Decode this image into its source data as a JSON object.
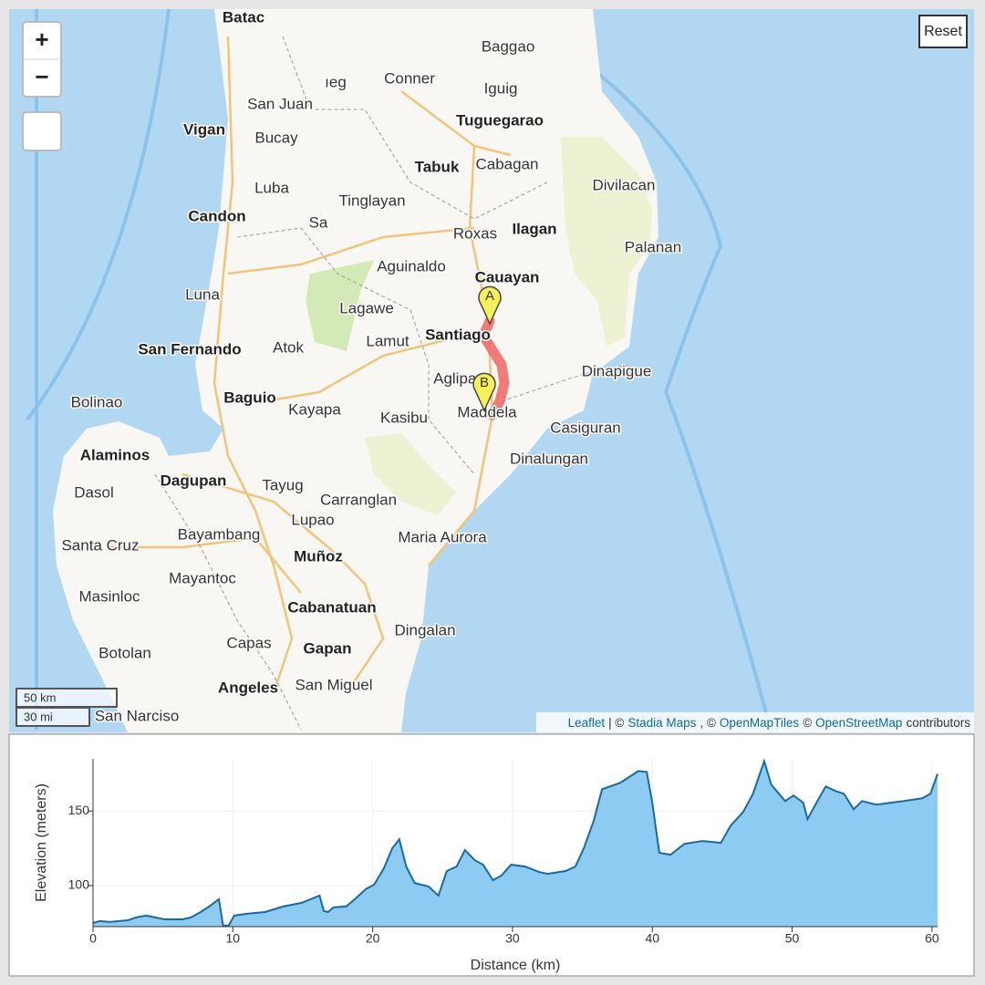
{
  "map": {
    "controls": {
      "zoom_in": "+",
      "zoom_out": "−",
      "reset": "Reset"
    },
    "places": [
      "Batac",
      "Baggao",
      "Conner",
      "Iguig",
      "ıeg",
      "San Juan",
      "Vigan",
      "Tuguegarao",
      "Bucay",
      "Tabuk",
      "Cabagan",
      "Divilacan",
      "Luba",
      "Candon",
      "Tinglayan",
      "Sa",
      "Roxas",
      "Ilagan",
      "Palanan",
      "Aguinaldo",
      "Cauayan",
      "Luna",
      "Lagawe",
      "Santiago",
      "Lamut",
      "Atok",
      "San Fernando",
      "Dinapigue",
      "Aglipay",
      "Bolinao",
      "Baguio",
      "Kayapa",
      "Kasibu",
      "Maddela",
      "Casiguran",
      "Alaminos",
      "Dinalungan",
      "Dagupan",
      "Tayug",
      "Dasol",
      "Carranglan",
      "Lupao",
      "Santa Cruz",
      "Bayambang",
      "Maria Aurora",
      "Muñoz",
      "Mayantoc",
      "Masinloc",
      "Cabanatuan",
      "Dingalan",
      "Capas",
      "Gapan",
      "Botolan",
      "Angeles",
      "San Miguel",
      "San Narciso"
    ],
    "markers": [
      "A",
      "B"
    ],
    "scale": [
      "50 km",
      "30 mi"
    ],
    "attribution": [
      "Leaflet",
      "| ©",
      "Stadia Maps",
      ", ©",
      "OpenMapTiles",
      "©",
      "OpenStreetMap",
      "contributors"
    ]
  },
  "chart_data": {
    "type": "area",
    "xlabel": "Distance (km)",
    "ylabel": "Elevation (meters)",
    "fill": "#8dcbf2",
    "color": "#1a6a9e",
    "grid": true,
    "xlim": [
      0,
      60.4
    ],
    "ylim": [
      72.5,
      185
    ],
    "xticks": [
      0,
      10,
      20,
      30,
      40,
      50,
      60
    ],
    "yticks": [
      100,
      150
    ],
    "x": [
      0,
      0.5,
      1.2,
      2.5,
      3.1,
      3.8,
      5.1,
      6.4,
      7.0,
      7.7,
      8.4,
      9.0,
      9.3,
      9.7,
      10.1,
      11.0,
      12.3,
      13.6,
      14.9,
      16.2,
      16.5,
      16.8,
      17.2,
      18.1,
      18.8,
      19.5,
      20.1,
      20.8,
      21.4,
      21.9,
      22.4,
      23.0,
      24.0,
      24.7,
      25.3,
      26.0,
      26.6,
      27.3,
      27.9,
      28.6,
      29.2,
      29.9,
      30.9,
      31.9,
      32.5,
      33.8,
      34.5,
      35.1,
      35.8,
      36.4,
      37.7,
      39.0,
      39.6,
      40.0,
      40.5,
      41.3,
      42.3,
      43.6,
      44.9,
      45.6,
      46.5,
      47.2,
      48.0,
      48.5,
      49.5,
      50.1,
      50.8,
      51.1,
      51.8,
      52.4,
      53.1,
      53.7,
      54.4,
      55.0,
      56.0,
      57.0,
      58.0,
      59.3,
      59.9,
      60.4
    ],
    "values": [
      75,
      76.2,
      75.6,
      76.8,
      78.7,
      79.9,
      77.4,
      77.4,
      78.7,
      82.3,
      86.6,
      90.9,
      73.2,
      73.2,
      79.9,
      81.1,
      82.3,
      86.0,
      88.4,
      93.3,
      83.0,
      82.3,
      85.4,
      86.0,
      91.5,
      97.6,
      100.6,
      111.6,
      125.0,
      131.1,
      112.8,
      101.8,
      99.4,
      93.3,
      109.8,
      112.8,
      123.8,
      117.1,
      114.0,
      103.7,
      106.7,
      114.0,
      112.8,
      109.1,
      107.9,
      109.8,
      112.8,
      125.0,
      143.3,
      164.6,
      168.9,
      176.8,
      176.2,
      155.5,
      122.0,
      120.7,
      128.0,
      129.9,
      128.7,
      140.2,
      149.4,
      161.6,
      183.5,
      167.7,
      156.7,
      160.4,
      155.5,
      144.5,
      156.7,
      166.5,
      163.4,
      161.6,
      151.2,
      156.7,
      154.3,
      155.5,
      156.7,
      158.5,
      161.6,
      175.0
    ]
  }
}
